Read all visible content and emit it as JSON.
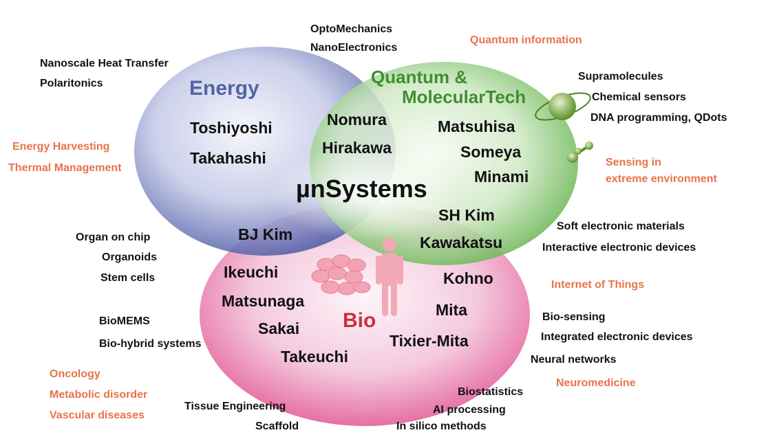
{
  "diagram": {
    "center_label": "µnSystems",
    "circles": {
      "energy": {
        "label": "Energy",
        "color": "#5363a6"
      },
      "quantum": {
        "label_line1": "Quantum &",
        "label_line2": "MolecularTech",
        "color": "#3f8f2f"
      },
      "bio": {
        "label": "Bio",
        "color": "#c8303a"
      }
    },
    "people": {
      "toshiyoshi": "Toshiyoshi",
      "takahashi": "Takahashi",
      "nomura": "Nomura",
      "hirakawa": "Hirakawa",
      "matsuhisa": "Matsuhisa",
      "someya": "Someya",
      "minami": "Minami",
      "bj_kim": "BJ Kim",
      "sh_kim": "SH Kim",
      "kawakatsu": "Kawakatsu",
      "ikeuchi": "Ikeuchi",
      "matsunaga": "Matsunaga",
      "sakai": "Sakai",
      "takeuchi": "Takeuchi",
      "kohno": "Kohno",
      "mita": "Mita",
      "tixier_mita": "Tixier-Mita"
    },
    "topics": {
      "optomechanics": "OptoMechanics",
      "nanoelectronics": "NanoElectronics",
      "quantum_information": "Quantum information",
      "nanoscale_heat": "Nanoscale Heat Transfer",
      "polaritonics": "Polaritonics",
      "supramolecules": "Supramolecules",
      "chemical_sensors": "Chemical sensors",
      "dna_programming": "DNA programming, QDots",
      "energy_harvesting": "Energy Harvesting",
      "thermal_management": "Thermal Management",
      "sensing_in": "Sensing in",
      "extreme_environment": "extreme environment",
      "soft_materials": "Soft electronic materials",
      "interactive_devices": "Interactive electronic devices",
      "organ_on_chip": "Organ on chip",
      "organoids": "Organoids",
      "stem_cells": "Stem cells",
      "iot": "Internet of Things",
      "biomems": "BioMEMS",
      "bio_hybrid": "Bio-hybrid systems",
      "bio_sensing": "Bio-sensing",
      "integrated_devices": "Integrated electronic devices",
      "neural_networks": "Neural networks",
      "oncology": "Oncology",
      "metabolic": "Metabolic disorder",
      "vascular": "Vascular diseases",
      "neuromedicine": "Neuromedicine",
      "tissue_engineering": "Tissue Engineering",
      "scaffold": "Scaffold",
      "biostatistics": "Biostatistics",
      "ai_processing": "AI processing",
      "in_silico": "In silico methods"
    }
  }
}
